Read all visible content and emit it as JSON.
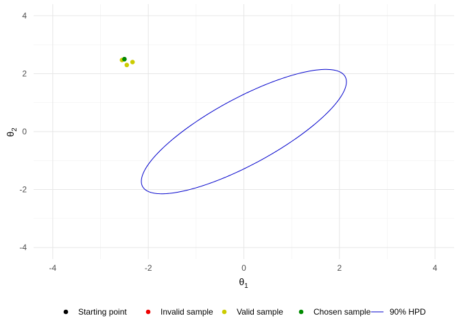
{
  "chart_data": {
    "type": "scatter",
    "xlim": [
      -4.4,
      4.4
    ],
    "ylim": [
      -4.4,
      4.4
    ],
    "x_ticks": [
      {
        "value": -4,
        "label": "-4"
      },
      {
        "value": -2,
        "label": "-2"
      },
      {
        "value": 0,
        "label": "0"
      },
      {
        "value": 2,
        "label": "2"
      },
      {
        "value": 4,
        "label": "4"
      }
    ],
    "y_ticks": [
      {
        "value": 4,
        "label": "4"
      },
      {
        "value": 2,
        "label": "2"
      },
      {
        "value": 0,
        "label": "0"
      },
      {
        "value": -2,
        "label": "-2"
      },
      {
        "value": -4,
        "label": "-4"
      }
    ],
    "xlabel": {
      "symbol": "θ",
      "subscript": "1"
    },
    "ylabel": {
      "symbol": "θ",
      "subscript": "2"
    },
    "grid": true,
    "legend_position": "bottom",
    "legend": [
      {
        "label": "Starting point",
        "kind": "point",
        "color": "#000000"
      },
      {
        "label": "Invalid sample",
        "kind": "point",
        "color": "#ee0000"
      },
      {
        "label": "Valid sample",
        "kind": "point",
        "color": "#cccc00"
      },
      {
        "label": "Chosen sample",
        "kind": "point",
        "color": "#008b00"
      },
      {
        "label": "90% HPD",
        "kind": "line",
        "color": "#0000cc"
      }
    ],
    "points": [
      {
        "series": "Starting point",
        "x": -2.5,
        "y": 2.5
      },
      {
        "series": "Valid sample",
        "x": -2.55,
        "y": 2.47
      },
      {
        "series": "Valid sample",
        "x": -2.33,
        "y": 2.4
      },
      {
        "series": "Valid sample",
        "x": -2.45,
        "y": 2.3
      },
      {
        "series": "Chosen sample",
        "x": -2.5,
        "y": 2.5
      }
    ],
    "hpd_region": {
      "label": "90% HPD",
      "center": [
        0,
        0
      ],
      "covariance": [
        [
          1,
          0.8
        ],
        [
          0.8,
          1
        ]
      ],
      "level": 0.9
    }
  }
}
